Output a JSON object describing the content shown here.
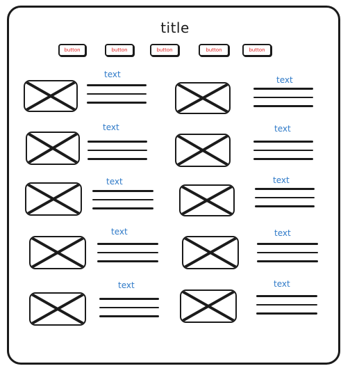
{
  "page": {
    "title": "title"
  },
  "buttons": [
    {
      "label": "button"
    },
    {
      "label": "button"
    },
    {
      "label": "button"
    },
    {
      "label": "button"
    },
    {
      "label": "button"
    }
  ],
  "cards": [
    {
      "text": "text"
    },
    {
      "text": "text"
    },
    {
      "text": "text"
    },
    {
      "text": "text"
    },
    {
      "text": "text"
    },
    {
      "text": "text"
    },
    {
      "text": "text"
    },
    {
      "text": "text"
    },
    {
      "text": "text"
    },
    {
      "text": "text"
    }
  ],
  "colors": {
    "ink": "#1b1b1b",
    "button_text": "#e02020",
    "label_text": "#2f7ac8"
  }
}
